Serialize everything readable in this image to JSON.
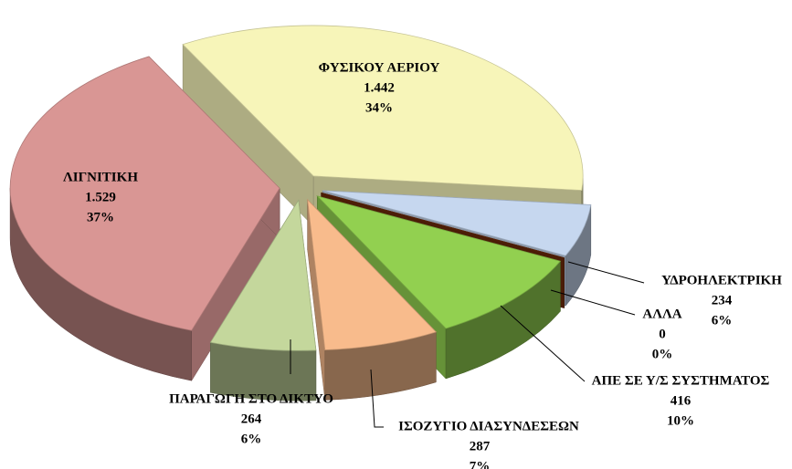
{
  "chart_data": {
    "type": "pie",
    "categories": [
      "ΦΥΣΙΚΟΥ ΑΕΡΙΟΥ",
      "ΥΔΡΟΗΛΕΚΤΡΙΚΗ",
      "ΑΛΛΑ",
      "ΑΠΕ ΣΕ Υ/Σ ΣΥΣΤΗΜΑΤΟΣ",
      "ΙΣΟΖΥΓΙΟ ΔΙΑΣΥΝΔΕΣΕΩΝ",
      "ΠΑΡΑΓΩΓΗ ΣΤΟ ΔΙΚΤΥΟ",
      "ΛΙΓΝΙΤΙΚΗ"
    ],
    "values": [
      1442,
      234,
      0,
      416,
      287,
      264,
      1529
    ],
    "value_labels": [
      "1.442",
      "234",
      "0",
      "416",
      "287",
      "264",
      "1.529"
    ],
    "percent_labels": [
      "34%",
      "6%",
      "0%",
      "10%",
      "7%",
      "6%",
      "37%"
    ],
    "colors": [
      "#f7f5b9",
      "#c6d7ef",
      "#6b2a0a",
      "#92d050",
      "#f8bb8c",
      "#c4d79c",
      "#d99694"
    ]
  }
}
